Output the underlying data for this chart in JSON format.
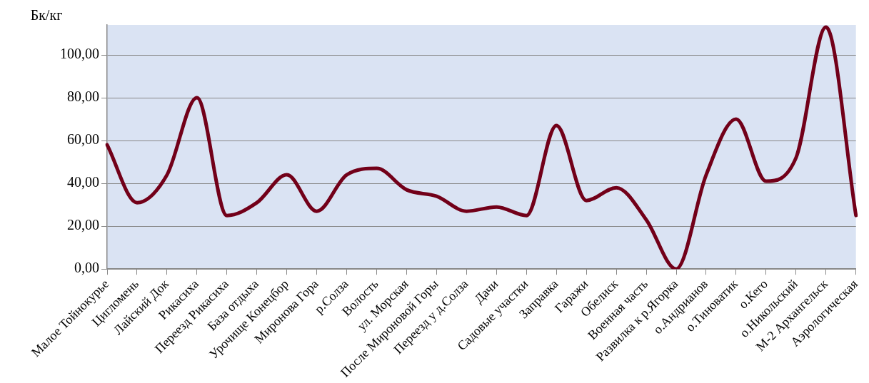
{
  "chart_data": {
    "type": "line",
    "ylabel": "Бк/кг",
    "categories": [
      "Малое Тойнокурье",
      "Цигломень",
      "Лайский Док",
      "Рикасиха",
      "Переезд Рикасиха",
      "База отдыха",
      "Урочище Конецбор",
      "Миронова Гора",
      "р.Солза",
      "Волость",
      "ул. Морская",
      "После Мироновой Горы",
      "Переезд у д.Солза",
      "Дачи",
      "Садовые участки",
      "Заправка",
      "Гаражи",
      "Обелиск",
      "Военная часть",
      "Развилка к р.Ягорка",
      "о.Андрианов",
      "о.Тиноватик",
      "о.Кего",
      "о.Никольский",
      "М-2 Архангельск",
      "Аэрологическая"
    ],
    "series": [
      {
        "color": "#720019",
        "values": [
          58,
          31,
          44,
          80,
          25,
          31,
          44,
          27,
          44,
          47,
          37,
          34,
          27,
          29,
          25,
          67,
          32,
          38,
          23,
          0,
          44,
          70,
          41,
          52,
          113,
          25
        ]
      }
    ],
    "ylim": [
      0,
      114
    ],
    "yticks": [
      {
        "value": 0,
        "label": "0,00"
      },
      {
        "value": 20,
        "label": "20,00"
      },
      {
        "value": 40,
        "label": "40,00"
      },
      {
        "value": 60,
        "label": "60,00"
      },
      {
        "value": 80,
        "label": "80,00"
      },
      {
        "value": 100,
        "label": "100,00"
      }
    ],
    "grid": "y",
    "legend": false,
    "marker": "none"
  }
}
